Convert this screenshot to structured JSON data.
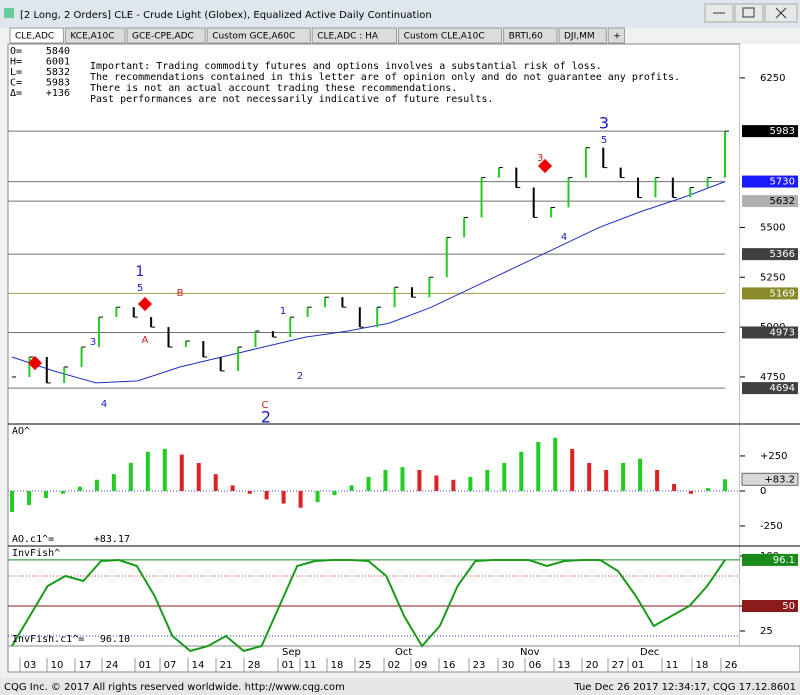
{
  "window": {
    "title": "[2 Long, 2 Orders]  CLE - Crude Light (Globex), Equalized Active Daily Continuation"
  },
  "tabs": [
    "CLE,ADC",
    "KCE,A10C",
    "GCE-CPE,ADC",
    "Custom GCE,A60C",
    "CLE,ADC : HA",
    "Custom CLE,A10C",
    "BRTI,60",
    "DJI,MM",
    "+"
  ],
  "ohlc": [
    [
      "O=",
      "5840"
    ],
    [
      "H=",
      "6001"
    ],
    [
      "L=",
      "5832"
    ],
    [
      "C=",
      "5983"
    ],
    [
      "Δ=",
      "+136"
    ]
  ],
  "disclaimer": [
    "Important: Trading commodity futures and options involves a substantial risk of loss.",
    "The recommendations contained in this letter are of opinion only and do not guarantee any profits.",
    "There is not an actual account trading these recommendations.",
    "Past performances are not necessarily indicative of future results."
  ],
  "price_panel": {
    "ylim": [
      4519,
      6420
    ],
    "yticks": [
      4750,
      5000,
      5250,
      5500,
      6250
    ],
    "closes": [
      4750,
      4850,
      4720,
      4800,
      4900,
      5050,
      5100,
      5050,
      5000,
      4900,
      4930,
      4850,
      4780,
      4900,
      4980,
      4950,
      5050,
      5100,
      5150,
      5100,
      5000,
      5100,
      5200,
      5150,
      5250,
      5450,
      5550,
      5750,
      5800,
      5700,
      5550,
      5600,
      5750,
      5900,
      5800,
      5750,
      5650,
      5750,
      5650,
      5700,
      5750,
      5983
    ],
    "moving_average": [
      4850,
      4780,
      4720,
      4730,
      4800,
      4850,
      4900,
      4950,
      4980,
      5020,
      5100,
      5200,
      5300,
      5400,
      5500,
      5580,
      5650,
      5730
    ],
    "tags": [
      {
        "value": 5983,
        "color": "#000000"
      },
      {
        "value": 5730,
        "color": "#1a1aff"
      },
      {
        "value": 5632,
        "color": "#b0b0b0"
      },
      {
        "value": 5366,
        "color": "#404040"
      },
      {
        "value": 5169,
        "color": "#8a8a2a"
      },
      {
        "value": 4973,
        "color": "#404040"
      },
      {
        "value": 4694,
        "color": "#404040"
      }
    ],
    "annotations": [
      "1",
      "5",
      "3",
      "4",
      "A",
      "B",
      "C",
      "2",
      "1",
      "2",
      "3",
      "5",
      "3",
      "4"
    ]
  },
  "ao_panel": {
    "label": "AO^",
    "ylim": [
      -386,
      471
    ],
    "yticks": [
      {
        "value": 250,
        "label": "+250"
      },
      0,
      -250
    ],
    "values": [
      -150,
      -100,
      -50,
      -20,
      30,
      80,
      120,
      200,
      280,
      300,
      260,
      200,
      120,
      40,
      -20,
      -60,
      -90,
      -120,
      -80,
      -30,
      40,
      100,
      150,
      170,
      150,
      110,
      80,
      100,
      150,
      200,
      280,
      350,
      380,
      300,
      200,
      150,
      200,
      230,
      150,
      50,
      -20,
      20,
      83.2
    ],
    "tag": {
      "value": 83.2,
      "label": "+83.2"
    },
    "readout": [
      "AO.c1^=",
      "+83.17"
    ]
  },
  "invfish_panel": {
    "label": "InvFish^",
    "ylim": [
      11,
      109
    ],
    "yticks": [
      25,
      50,
      100
    ],
    "values": [
      10,
      40,
      70,
      80,
      75,
      95,
      96,
      90,
      60,
      20,
      5,
      10,
      20,
      5,
      10,
      50,
      90,
      95,
      96,
      96,
      95,
      80,
      40,
      10,
      30,
      70,
      95,
      96,
      96,
      96,
      90,
      95,
      96,
      96,
      85,
      60,
      30,
      40,
      50,
      70,
      96.1
    ],
    "tags": [
      {
        "value": 96.1,
        "color": "#1a8a1a"
      },
      {
        "value": 50,
        "color": "#8b1a1a"
      }
    ],
    "readout": [
      "InvFish.c1^=",
      "96.10"
    ]
  },
  "dates": {
    "days": [
      "03",
      "10",
      "17",
      "24",
      "01",
      "07",
      "14",
      "21",
      "28",
      "01",
      "11",
      "18",
      "25",
      "02",
      "09",
      "16",
      "23",
      "30",
      "06",
      "13",
      "20",
      "27",
      "01",
      "11",
      "18",
      "26"
    ],
    "months": [
      "Sep",
      "Oct",
      "Nov",
      "Dec"
    ]
  },
  "status": {
    "left": "CQG Inc. © 2017 All rights reserved worldwide. http://www.cqg.com",
    "right": "Tue Dec 26 2017 12:34:17, CQG 17.12.8601"
  }
}
